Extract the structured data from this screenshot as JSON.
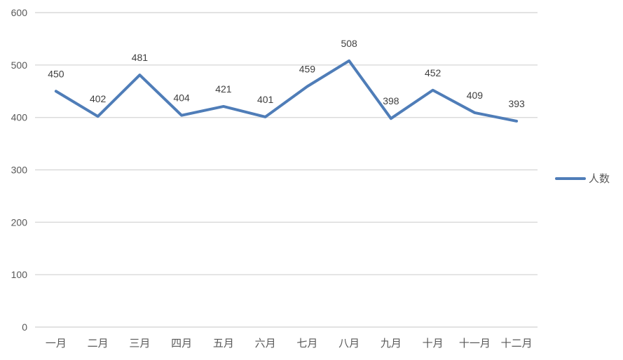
{
  "chart_data": {
    "type": "line",
    "categories": [
      "一月",
      "二月",
      "三月",
      "四月",
      "五月",
      "六月",
      "七月",
      "八月",
      "九月",
      "十月",
      "十一月",
      "十二月"
    ],
    "series": [
      {
        "name": "人数",
        "values": [
          450,
          402,
          481,
          404,
          421,
          401,
          459,
          508,
          398,
          452,
          409,
          393
        ],
        "color": "#4f7db8"
      }
    ],
    "yticks": [
      0,
      100,
      200,
      300,
      400,
      500,
      600
    ],
    "ylim": [
      0,
      600
    ],
    "grid": true,
    "data_labels": true,
    "legend_position": "right"
  }
}
